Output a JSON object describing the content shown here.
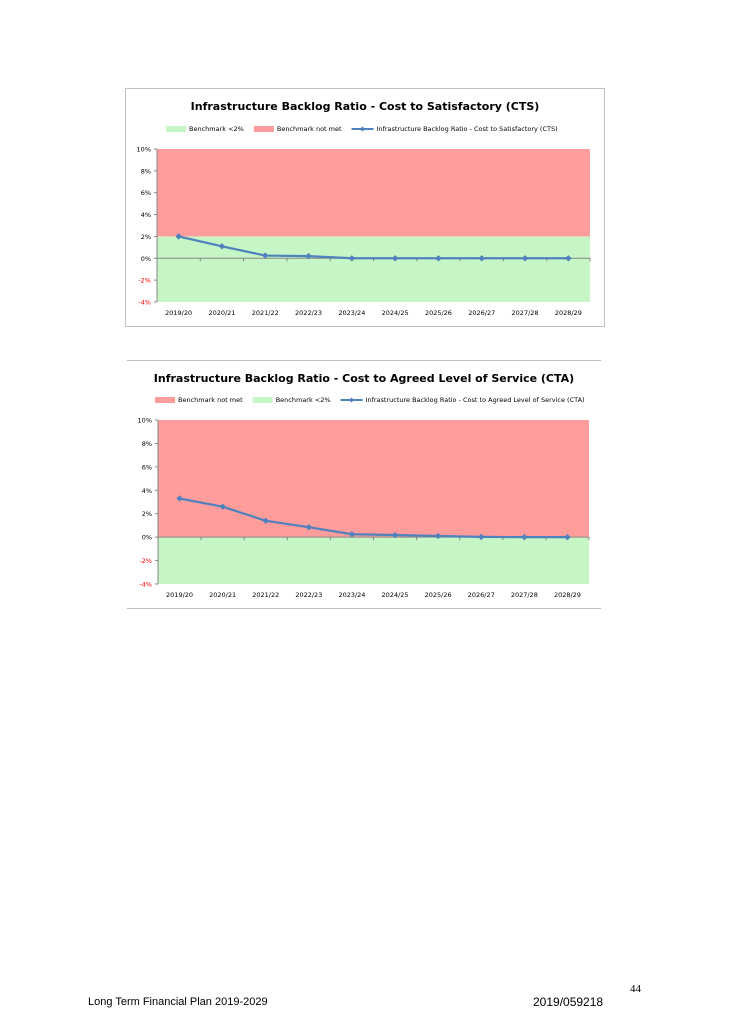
{
  "chart_data": [
    {
      "type": "line",
      "title": "Infrastructure Backlog Ratio - Cost to Satisfactory (CTS)",
      "categories": [
        "2019/20",
        "2020/21",
        "2021/22",
        "2022/23",
        "2023/24",
        "2024/25",
        "2025/26",
        "2026/27",
        "2027/28",
        "2028/29"
      ],
      "series": [
        {
          "name": "Infrastructure Backlog Ratio - Cost to Satisfactory (CTS)",
          "values": [
            2.0,
            1.1,
            0.25,
            0.2,
            0.0,
            0.0,
            0.0,
            0.0,
            0.0,
            0.0
          ],
          "color": "#4f81bd"
        }
      ],
      "bands": [
        {
          "name": "Benchmark <2%",
          "from": -4,
          "to": 2,
          "color": "#c6f5c6"
        },
        {
          "name": "Benchmark not met",
          "from": 2,
          "to": 10,
          "color": "#ff9c9c"
        }
      ],
      "legend": [
        "Benchmark <2%",
        "Benchmark not met",
        "Infrastructure Backlog Ratio - Cost to Satisfactory (CTS)"
      ],
      "ylim": [
        -4,
        10
      ],
      "yticks": [
        "10%",
        "8%",
        "6%",
        "4%",
        "2%",
        "0%",
        "-2%",
        "-4%"
      ],
      "ytick_values": [
        10,
        8,
        6,
        4,
        2,
        0,
        -2,
        -4
      ],
      "negative_tick_color": "#ff0000",
      "legend_position": "top",
      "grid": false
    },
    {
      "type": "line",
      "title": "Infrastructure Backlog Ratio - Cost to Agreed Level of Service (CTA)",
      "categories": [
        "2019/20",
        "2020/21",
        "2021/22",
        "2022/23",
        "2023/24",
        "2024/25",
        "2025/26",
        "2026/27",
        "2027/28",
        "2028/29"
      ],
      "series": [
        {
          "name": "Infrastructure Backlog Ratio - Cost to Agreed Level of Service (CTA)",
          "values": [
            3.3,
            2.6,
            1.4,
            0.85,
            0.25,
            0.18,
            0.1,
            0.02,
            0.0,
            0.0
          ],
          "color": "#4f81bd"
        }
      ],
      "bands": [
        {
          "name": "Benchmark not met",
          "from": 0,
          "to": 10,
          "color": "#ff9c9c"
        },
        {
          "name": "Benchmark <2%",
          "from": -4,
          "to": 0,
          "color": "#c6f5c6"
        }
      ],
      "legend": [
        "Benchmark not met",
        "Benchmark <2%",
        "Infrastructure Backlog Ratio - Cost to Agreed Level of Service (CTA)"
      ],
      "ylim": [
        -4,
        10
      ],
      "yticks": [
        "10%",
        "8%",
        "6%",
        "4%",
        "2%",
        "0%",
        "-2%",
        "-4%"
      ],
      "ytick_values": [
        10,
        8,
        6,
        4,
        2,
        0,
        -2,
        -4
      ],
      "negative_tick_color": "#ff0000",
      "legend_position": "top",
      "grid": false
    }
  ],
  "footer": {
    "left": "Long Term Financial Plan 2019-2029",
    "right": "2019/059218",
    "page_number": "44"
  }
}
